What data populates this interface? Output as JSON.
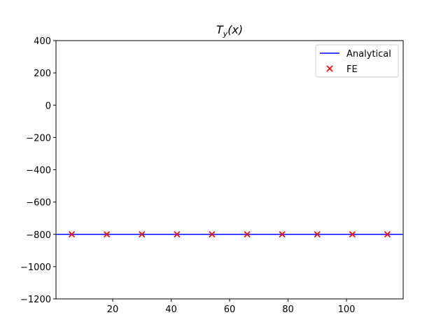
{
  "chart_data": {
    "type": "line",
    "title": {
      "main": "T",
      "subscript": "y",
      "rest": "(x)"
    },
    "xlim": [
      0.6,
      119.4
    ],
    "xticks": [
      20,
      40,
      60,
      80,
      100
    ],
    "ylim": [
      -1200,
      400
    ],
    "yticks": [
      400,
      200,
      0,
      {
        "value": -200,
        "label": "−200"
      },
      {
        "value": -400,
        "label": "−400"
      },
      {
        "value": -600,
        "label": "−600"
      },
      {
        "value": -800,
        "label": "−800"
      },
      {
        "value": -1000,
        "label": "−1000"
      },
      {
        "value": -1200,
        "label": "−1200"
      }
    ],
    "legend": "upper right",
    "series": [
      {
        "name": "Analytical",
        "color": "#0000ff",
        "marker": "line",
        "x": [
          0,
          120
        ],
        "values": [
          -800,
          -800
        ]
      },
      {
        "name": "FE",
        "color": "#ff0000",
        "marker": "x",
        "x": [
          6,
          18,
          30,
          42,
          54,
          66,
          78,
          90,
          102,
          114
        ],
        "values": [
          -800,
          -800,
          -800,
          -800,
          -800,
          -800,
          -800,
          -800,
          -800,
          -800
        ]
      }
    ]
  }
}
